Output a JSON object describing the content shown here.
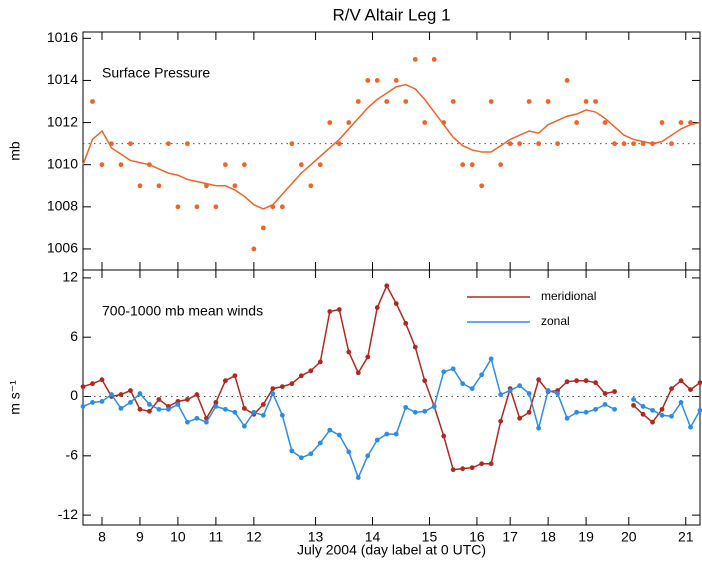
{
  "chart_data": [
    {
      "type": "line",
      "title": "R/V Altair Leg 1",
      "annotation": "Surface Pressure",
      "ylabel": "mb",
      "xlim": [
        0,
        65
      ],
      "ylim": [
        1005,
        1016.3
      ],
      "yticks": [
        1006,
        1008,
        1010,
        1012,
        1014,
        1016
      ],
      "hline": 1011,
      "series": [
        {
          "color": "#f0642a",
          "marker": true,
          "connect": false,
          "x": [
            1,
            2,
            3,
            4,
            5,
            6,
            7,
            8,
            9,
            10,
            11,
            12,
            13,
            14,
            15,
            16,
            17,
            18,
            19,
            20,
            21,
            22,
            23,
            24,
            25,
            26,
            27,
            28,
            29,
            30,
            31,
            32,
            33,
            34,
            35,
            36,
            37,
            38,
            39,
            40,
            41,
            42,
            43,
            44,
            45,
            46,
            47,
            48,
            49,
            50,
            51,
            52,
            53,
            54,
            55,
            56,
            57,
            58,
            59,
            60,
            61,
            62,
            63,
            64
          ],
          "values": [
            1013,
            1010,
            1011,
            1010,
            1011,
            1009,
            1010,
            1009,
            1011,
            1008,
            1011,
            1008,
            1009,
            1008,
            1010,
            1009,
            1010,
            1006,
            1007,
            1008,
            1008,
            1011,
            1010,
            1009,
            1010,
            1012,
            1011,
            1012,
            1013,
            1014,
            1014,
            1013,
            1014,
            1013,
            1015,
            1012,
            1015,
            1012,
            1013,
            1010,
            1010,
            1009,
            1013,
            1010,
            1011,
            1011,
            1013,
            1011,
            1013,
            1011,
            1014,
            1012,
            1013,
            1013,
            1012,
            1011,
            1011,
            1011,
            1011,
            1011,
            1012,
            1011,
            1012,
            1012
          ]
        },
        {
          "color": "#f0642a",
          "marker": false,
          "connect": true,
          "x": [
            0,
            1,
            2,
            3,
            4,
            5,
            6,
            7,
            8,
            9,
            10,
            11,
            12,
            13,
            14,
            15,
            16,
            17,
            18,
            19,
            20,
            21,
            22,
            23,
            24,
            25,
            26,
            27,
            28,
            29,
            30,
            31,
            32,
            33,
            34,
            35,
            36,
            37,
            38,
            39,
            40,
            41,
            42,
            43,
            44,
            45,
            46,
            47,
            48,
            49,
            50,
            51,
            52,
            53,
            54,
            55,
            56,
            57,
            58,
            59,
            60,
            61,
            62,
            63,
            64,
            65
          ],
          "values": [
            1010,
            1011.2,
            1011.6,
            1010.8,
            1010.5,
            1010.2,
            1010.1,
            1010,
            1009.8,
            1009.6,
            1009.5,
            1009.3,
            1009.2,
            1009.1,
            1009,
            1009,
            1008.8,
            1008.5,
            1008.1,
            1007.9,
            1008.1,
            1008.6,
            1009.1,
            1009.6,
            1010,
            1010.4,
            1010.8,
            1011.2,
            1011.7,
            1012.2,
            1012.7,
            1013.1,
            1013.4,
            1013.7,
            1013.8,
            1013.6,
            1013.1,
            1012.5,
            1011.9,
            1011.3,
            1010.9,
            1010.7,
            1010.6,
            1010.6,
            1010.9,
            1011.2,
            1011.4,
            1011.6,
            1011.5,
            1011.9,
            1012.1,
            1012.3,
            1012.4,
            1012.6,
            1012.5,
            1012.2,
            1011.8,
            1011.4,
            1011.2,
            1011.1,
            1011,
            1011.1,
            1011.4,
            1011.7,
            1011.9,
            1012
          ]
        }
      ]
    },
    {
      "type": "line",
      "annotation": "700-1000 mb mean winds",
      "ylabel": "m s⁻¹",
      "xlabel": "July 2004 (day label at 0 UTC)",
      "xlim": [
        0,
        65
      ],
      "ylim": [
        -13,
        12.8
      ],
      "yticks": [
        12,
        6,
        0,
        -6,
        -12
      ],
      "hline": 0,
      "xticks": [
        {
          "value": 2,
          "label": "8"
        },
        {
          "value": 6,
          "label": "9"
        },
        {
          "value": 10,
          "label": "10"
        },
        {
          "value": 14,
          "label": "11"
        },
        {
          "value": 18,
          "label": "12"
        },
        {
          "value": 24.5,
          "label": "13"
        },
        {
          "value": 30.5,
          "label": "14"
        },
        {
          "value": 36.5,
          "label": "15"
        },
        {
          "value": 41.5,
          "label": "16"
        },
        {
          "value": 45,
          "label": "17"
        },
        {
          "value": 49,
          "label": "18"
        },
        {
          "value": 53,
          "label": "19"
        },
        {
          "value": 57.5,
          "label": "20"
        },
        {
          "value": 63.5,
          "label": "21"
        }
      ],
      "x": [
        0,
        1,
        2,
        3,
        4,
        5,
        6,
        7,
        8,
        9,
        10,
        11,
        12,
        13,
        14,
        15,
        16,
        17,
        18,
        19,
        20,
        21,
        22,
        23,
        24,
        25,
        26,
        27,
        28,
        29,
        30,
        31,
        32,
        33,
        34,
        35,
        36,
        37,
        38,
        39,
        40,
        41,
        42,
        43,
        44,
        45,
        46,
        47,
        48,
        49,
        50,
        51,
        52,
        53,
        54,
        55,
        56,
        57,
        58,
        59,
        60,
        61,
        62,
        63,
        64,
        65
      ],
      "series": [
        {
          "name": "meridional",
          "color": "#b0281e",
          "marker": true,
          "connect": true,
          "values": [
            1,
            1.3,
            1.7,
            0,
            0.2,
            0.6,
            -1.3,
            -1.5,
            -0.3,
            -1,
            -0.5,
            -0.3,
            0.2,
            -2.2,
            -0.6,
            1.6,
            2.1,
            -1.2,
            -1.8,
            -0.8,
            0.8,
            1,
            1.3,
            2.1,
            2.6,
            3.5,
            8.6,
            8.8,
            4.5,
            2.4,
            4,
            9,
            11.2,
            9.4,
            7.4,
            5,
            1.6,
            -1,
            -4,
            -7.4,
            -7.3,
            -7.2,
            -6.8,
            -6.8,
            -2.5,
            0.8,
            -2.2,
            -1.6,
            1.7,
            0.5,
            0.6,
            1.5,
            1.6,
            1.6,
            1.4,
            0.3,
            0.5,
            null,
            -0.9,
            -1.8,
            -2.6,
            -1.3,
            0.8,
            1.6,
            0.7,
            1.4
          ]
        },
        {
          "name": "zonal",
          "color": "#2b8de8",
          "marker": true,
          "connect": true,
          "values": [
            -1,
            -0.6,
            -0.5,
            0.2,
            -1.2,
            -0.6,
            0.3,
            -0.8,
            -1.3,
            -1.3,
            -0.8,
            -2.6,
            -2.2,
            -2.6,
            -1,
            -1.3,
            -1.6,
            -3,
            -1.6,
            -1.9,
            0.3,
            -1.9,
            -5.5,
            -6.2,
            -5.8,
            -4.7,
            -3.4,
            -3.9,
            -5.6,
            -8.2,
            -6,
            -4.4,
            -3.8,
            -3.8,
            -1.1,
            -1.6,
            -1.5,
            -1,
            2.5,
            2.8,
            1.3,
            0.8,
            2.2,
            3.8,
            0.2,
            0.6,
            1.1,
            0.3,
            -3.2,
            0.6,
            0.3,
            -2.2,
            -1.6,
            -1.6,
            -1.3,
            -0.8,
            -1.3,
            null,
            -0.3,
            -1,
            -1.4,
            -1.9,
            -2,
            -0.6,
            -3.1,
            -1.4
          ]
        }
      ]
    }
  ]
}
